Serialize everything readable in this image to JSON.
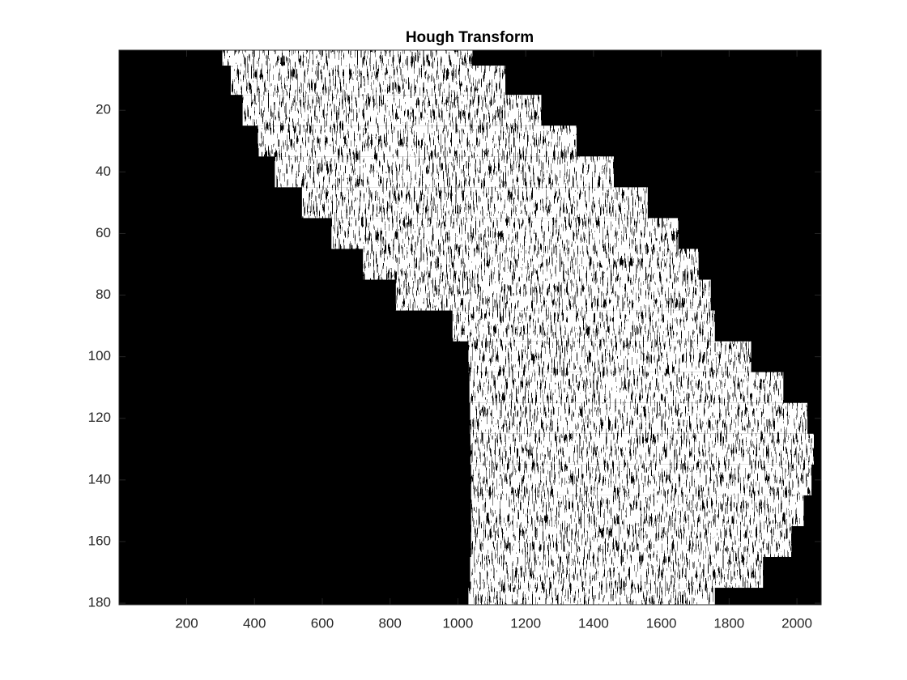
{
  "chart_data": {
    "type": "image",
    "title": "Hough Transform",
    "xlim": [
      0.5,
      2071.5
    ],
    "ylim": [
      180.5,
      0.5
    ],
    "xticks": [
      200,
      400,
      600,
      800,
      1000,
      1200,
      1400,
      1600,
      1800,
      2000
    ],
    "yticks": [
      20,
      40,
      60,
      80,
      100,
      120,
      140,
      160,
      180
    ],
    "background": "#000000",
    "color": "#ffffff",
    "rows": [
      1,
      10,
      20,
      30,
      40,
      50,
      60,
      70,
      80,
      90,
      100,
      110,
      120,
      130,
      140,
      150,
      160,
      170,
      180
    ],
    "x_start": [
      305,
      330,
      365,
      410,
      460,
      540,
      627,
      720,
      817,
      984,
      1031,
      1034,
      1036,
      1037,
      1039,
      1039,
      1039,
      1036,
      1031
    ],
    "x_end": [
      1043,
      1140,
      1246,
      1350,
      1460,
      1560,
      1650,
      1710,
      1746,
      1758,
      1865,
      1960,
      2031,
      2050,
      2043,
      2020,
      1984,
      1900,
      1758
    ]
  }
}
